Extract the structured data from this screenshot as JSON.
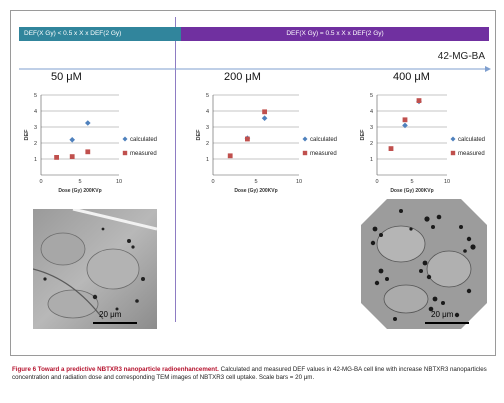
{
  "header": {
    "left_label": "DEF(X Gy) < 0.5 x X x DEF(2 Gy)",
    "right_label": "DEF(X Gy) = 0.5 x X x DEF(2 Gy)",
    "cell_line": "42-MG-BA"
  },
  "colors": {
    "left_header": "#31859c",
    "right_header": "#7030a0",
    "calculated": "#4f81bd",
    "measured": "#c0504d"
  },
  "tem": {
    "left": {
      "scale_label": "20 μm",
      "scale_value": 20
    },
    "right": {
      "scale_label": "20 μm",
      "scale_value": 20
    }
  },
  "caption": {
    "lead": "Figure 6 Toward a predictive NBTXR3 nanoparticle radioenhancement.",
    "text": " Calculated and measured DEF values in 42-MG-BA cell line with increase NBTXR3 nanoparticles concentration and radiation dose and corresponding TEM images of NBTXR3 cell uptake. Scale bars = 20 μm."
  },
  "chart_data": [
    {
      "type": "scatter",
      "title": "50 μM",
      "xlabel": "Dose (Gy) 200KVp",
      "ylabel": "DEF",
      "xlim": [
        0,
        10
      ],
      "ylim": [
        0,
        5
      ],
      "xticks": [
        0,
        5,
        10
      ],
      "yticks": [
        1,
        2,
        3,
        4,
        5
      ],
      "grid": true,
      "legend_position": "right",
      "series": [
        {
          "name": "calculated",
          "marker": "diamond",
          "x": [
            4,
            6
          ],
          "y": [
            2.2,
            3.25
          ]
        },
        {
          "name": "measured",
          "marker": "square",
          "x": [
            2,
            4,
            6
          ],
          "y": [
            1.1,
            1.15,
            1.45
          ]
        }
      ]
    },
    {
      "type": "scatter",
      "title": "200 μM",
      "xlabel": "Dose (Gy) 200KVp",
      "ylabel": "DEF",
      "xlim": [
        0,
        10
      ],
      "ylim": [
        0,
        5
      ],
      "xticks": [
        0,
        5,
        10
      ],
      "yticks": [
        1,
        2,
        3,
        4,
        5
      ],
      "grid": true,
      "legend_position": "right",
      "series": [
        {
          "name": "calculated",
          "marker": "diamond",
          "x": [
            4,
            6
          ],
          "y": [
            2.3,
            3.55
          ]
        },
        {
          "name": "measured",
          "marker": "square",
          "x": [
            2,
            4,
            6
          ],
          "y": [
            1.2,
            2.25,
            3.95
          ]
        }
      ]
    },
    {
      "type": "scatter",
      "title": "400 μM",
      "xlabel": "Dose (Gy) 200KVp",
      "ylabel": "DEF",
      "xlim": [
        0,
        10
      ],
      "ylim": [
        0,
        5
      ],
      "xticks": [
        0,
        5,
        10
      ],
      "yticks": [
        1,
        2,
        3,
        4,
        5
      ],
      "grid": true,
      "legend_position": "right",
      "series": [
        {
          "name": "calculated",
          "marker": "diamond",
          "x": [
            4,
            6
          ],
          "y": [
            3.1,
            4.6
          ]
        },
        {
          "name": "measured",
          "marker": "square",
          "x": [
            2,
            4,
            6
          ],
          "y": [
            1.65,
            3.45,
            4.65
          ]
        }
      ]
    }
  ]
}
